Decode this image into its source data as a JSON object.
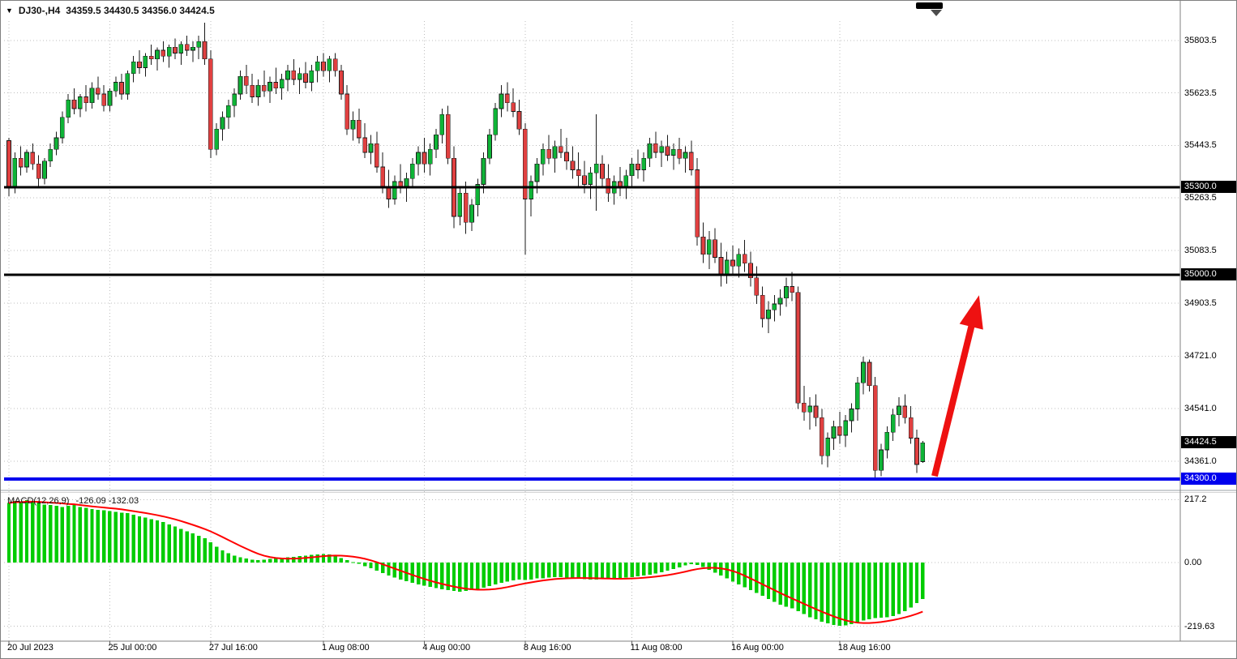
{
  "header": {
    "symbol_timeframe": "DJ30-,H4",
    "ohlc_text": "34359.5 34430.5 34356.0 34424.5"
  },
  "macd_panel": {
    "label": "MACD(12,26,9)",
    "values_text": "-126.09 -132.03"
  },
  "colors": {
    "background": "#ffffff",
    "grid": "#bdbdbd",
    "bull": "#0fb437",
    "bear": "#e04040",
    "wick": "#1a1a1a",
    "price_box": "#000000",
    "level_blue": "#0000ee",
    "arrow": "#ee1111",
    "macd_bar": "#00cc00",
    "macd_signal": "#ff0000"
  },
  "chart_data": [
    {
      "type": "candlestick",
      "symbol": "DJ30-",
      "timeframe": "H4",
      "last_ohlc": {
        "open": 34359.5,
        "high": 34430.5,
        "low": 34356.0,
        "close": 34424.5
      },
      "y_axis": {
        "ticks": [
          "35803.5",
          "35623.5",
          "35443.5",
          "35263.5",
          "35083.5",
          "34903.5",
          "34721.0",
          "34541.0",
          "34361.0"
        ],
        "min": 34272,
        "max": 35870
      },
      "x_axis": {
        "labels": [
          "20 Jul 2023",
          "25 Jul 00:00",
          "27 Jul 16:00",
          "1 Aug 08:00",
          "4 Aug 00:00",
          "8 Aug 16:00",
          "11 Aug 08:00",
          "16 Aug 00:00",
          "18 Aug 16:00"
        ],
        "label_indices": [
          0,
          17,
          34,
          53,
          70,
          87,
          105,
          122,
          140
        ]
      },
      "hlines": [
        {
          "price": 35300.0,
          "label": "35300.0",
          "color": "#000000",
          "thickness": 3
        },
        {
          "price": 35000.0,
          "label": "35000.0",
          "color": "#000000",
          "thickness": 3
        },
        {
          "price": 34300.0,
          "label": "34300.0",
          "color": "#0000ee",
          "thickness": 4
        }
      ],
      "current_price": 34424.5,
      "current_price_label": "34424.5",
      "annotation_arrow": {
        "from_index": 156,
        "from_price": 34310,
        "to_index": 163.5,
        "to_price": 34930,
        "color": "#ee1111"
      },
      "candles": [
        [
          35460,
          35470,
          35270,
          35300
        ],
        [
          35300,
          35420,
          35280,
          35400
        ],
        [
          35400,
          35440,
          35340,
          35370
        ],
        [
          35370,
          35430,
          35350,
          35420
        ],
        [
          35420,
          35450,
          35360,
          35380
        ],
        [
          35380,
          35410,
          35300,
          35330
        ],
        [
          35330,
          35400,
          35310,
          35390
        ],
        [
          35390,
          35450,
          35370,
          35430
        ],
        [
          35430,
          35490,
          35410,
          35470
        ],
        [
          35470,
          35560,
          35450,
          35540
        ],
        [
          35540,
          35620,
          35520,
          35600
        ],
        [
          35600,
          35640,
          35550,
          35570
        ],
        [
          35570,
          35620,
          35540,
          35610
        ],
        [
          35610,
          35650,
          35560,
          35590
        ],
        [
          35590,
          35660,
          35570,
          35640
        ],
        [
          35640,
          35680,
          35600,
          35620
        ],
        [
          35620,
          35650,
          35560,
          35580
        ],
        [
          35580,
          35640,
          35560,
          35630
        ],
        [
          35630,
          35680,
          35610,
          35660
        ],
        [
          35660,
          35690,
          35600,
          35620
        ],
        [
          35620,
          35700,
          35600,
          35690
        ],
        [
          35690,
          35750,
          35660,
          35730
        ],
        [
          35730,
          35770,
          35690,
          35710
        ],
        [
          35710,
          35760,
          35680,
          35750
        ],
        [
          35750,
          35790,
          35720,
          35740
        ],
        [
          35740,
          35780,
          35700,
          35770
        ],
        [
          35770,
          35800,
          35730,
          35750
        ],
        [
          35750,
          35790,
          35710,
          35780
        ],
        [
          35780,
          35810,
          35740,
          35760
        ],
        [
          35760,
          35800,
          35720,
          35790
        ],
        [
          35790,
          35820,
          35750,
          35770
        ],
        [
          35770,
          35800,
          35730,
          35780
        ],
        [
          35780,
          35820,
          35740,
          35800
        ],
        [
          35800,
          35865,
          35720,
          35740
        ],
        [
          35740,
          35770,
          35400,
          35430
        ],
        [
          35430,
          35520,
          35410,
          35500
        ],
        [
          35500,
          35560,
          35460,
          35540
        ],
        [
          35540,
          35600,
          35500,
          35580
        ],
        [
          35580,
          35640,
          35540,
          35620
        ],
        [
          35620,
          35700,
          35600,
          35680
        ],
        [
          35680,
          35720,
          35620,
          35650
        ],
        [
          35650,
          35690,
          35590,
          35610
        ],
        [
          35610,
          35670,
          35580,
          35650
        ],
        [
          35650,
          35700,
          35610,
          35630
        ],
        [
          35630,
          35680,
          35590,
          35660
        ],
        [
          35660,
          35710,
          35620,
          35640
        ],
        [
          35640,
          35690,
          35600,
          35670
        ],
        [
          35670,
          35720,
          35630,
          35700
        ],
        [
          35700,
          35740,
          35650,
          35670
        ],
        [
          35670,
          35710,
          35620,
          35690
        ],
        [
          35690,
          35730,
          35640,
          35660
        ],
        [
          35660,
          35720,
          35630,
          35700
        ],
        [
          35700,
          35750,
          35660,
          35730
        ],
        [
          35730,
          35760,
          35680,
          35700
        ],
        [
          35700,
          35750,
          35660,
          35740
        ],
        [
          35740,
          35760,
          35680,
          35700
        ],
        [
          35700,
          35720,
          35600,
          35620
        ],
        [
          35620,
          35650,
          35480,
          35500
        ],
        [
          35500,
          35560,
          35460,
          35530
        ],
        [
          35530,
          35570,
          35450,
          35470
        ],
        [
          35470,
          35520,
          35400,
          35420
        ],
        [
          35420,
          35480,
          35380,
          35450
        ],
        [
          35450,
          35490,
          35350,
          35370
        ],
        [
          35370,
          35420,
          35280,
          35300
        ],
        [
          35300,
          35360,
          35230,
          35260
        ],
        [
          35260,
          35340,
          35240,
          35320
        ],
        [
          35320,
          35380,
          35280,
          35300
        ],
        [
          35300,
          35350,
          35250,
          35330
        ],
        [
          35330,
          35400,
          35300,
          35380
        ],
        [
          35380,
          35440,
          35340,
          35420
        ],
        [
          35420,
          35470,
          35350,
          35380
        ],
        [
          35380,
          35450,
          35340,
          35430
        ],
        [
          35430,
          35500,
          35400,
          35480
        ],
        [
          35480,
          35570,
          35450,
          35550
        ],
        [
          35550,
          35580,
          35380,
          35400
        ],
        [
          35400,
          35440,
          35160,
          35200
        ],
        [
          35200,
          35300,
          35170,
          35280
        ],
        [
          35280,
          35320,
          35140,
          35180
        ],
        [
          35180,
          35260,
          35150,
          35240
        ],
        [
          35240,
          35330,
          35200,
          35310
        ],
        [
          35310,
          35420,
          35280,
          35400
        ],
        [
          35400,
          35500,
          35380,
          35480
        ],
        [
          35480,
          35590,
          35460,
          35570
        ],
        [
          35570,
          35650,
          35540,
          35620
        ],
        [
          35620,
          35660,
          35560,
          35590
        ],
        [
          35590,
          35640,
          35540,
          35560
        ],
        [
          35560,
          35600,
          35480,
          35500
        ],
        [
          35500,
          35520,
          35070,
          35260
        ],
        [
          35260,
          35340,
          35200,
          35320
        ],
        [
          35320,
          35400,
          35280,
          35380
        ],
        [
          35380,
          35450,
          35340,
          35430
        ],
        [
          35430,
          35480,
          35380,
          35400
        ],
        [
          35400,
          35460,
          35350,
          35440
        ],
        [
          35440,
          35500,
          35400,
          35420
        ],
        [
          35420,
          35470,
          35360,
          35390
        ],
        [
          35390,
          35440,
          35330,
          35360
        ],
        [
          35360,
          35420,
          35300,
          35340
        ],
        [
          35340,
          35390,
          35280,
          35310
        ],
        [
          35310,
          35370,
          35260,
          35350
        ],
        [
          35350,
          35550,
          35220,
          35380
        ],
        [
          35380,
          35410,
          35300,
          35330
        ],
        [
          35330,
          35380,
          35250,
          35280
        ],
        [
          35280,
          35340,
          35240,
          35320
        ],
        [
          35320,
          35370,
          35270,
          35300
        ],
        [
          35300,
          35360,
          35260,
          35340
        ],
        [
          35340,
          35400,
          35300,
          35380
        ],
        [
          35380,
          35430,
          35330,
          35360
        ],
        [
          35360,
          35420,
          35320,
          35400
        ],
        [
          35400,
          35470,
          35370,
          35450
        ],
        [
          35450,
          35490,
          35400,
          35420
        ],
        [
          35420,
          35460,
          35370,
          35440
        ],
        [
          35440,
          35480,
          35390,
          35410
        ],
        [
          35410,
          35450,
          35360,
          35430
        ],
        [
          35430,
          35470,
          35380,
          35400
        ],
        [
          35400,
          35440,
          35350,
          35420
        ],
        [
          35420,
          35460,
          35340,
          35360
        ],
        [
          35360,
          35400,
          35100,
          35130
        ],
        [
          35130,
          35180,
          35040,
          35070
        ],
        [
          35070,
          35150,
          35020,
          35120
        ],
        [
          35120,
          35160,
          35040,
          35060
        ],
        [
          35060,
          35110,
          34960,
          35000
        ],
        [
          35000,
          35080,
          34970,
          35050
        ],
        [
          35050,
          35100,
          35000,
          35030
        ],
        [
          35030,
          35090,
          34990,
          35070
        ],
        [
          35070,
          35120,
          35010,
          35040
        ],
        [
          35040,
          35080,
          34960,
          34990
        ],
        [
          34990,
          35030,
          34900,
          34930
        ],
        [
          34930,
          34960,
          34820,
          34850
        ],
        [
          34850,
          34910,
          34800,
          34880
        ],
        [
          34880,
          34930,
          34840,
          34900
        ],
        [
          34900,
          34950,
          34860,
          34920
        ],
        [
          34920,
          34990,
          34890,
          34960
        ],
        [
          34960,
          35010,
          34910,
          34940
        ],
        [
          34940,
          34960,
          34540,
          34560
        ],
        [
          34560,
          34620,
          34500,
          34530
        ],
        [
          34530,
          34580,
          34470,
          34550
        ],
        [
          34550,
          34590,
          34480,
          34510
        ],
        [
          34510,
          34540,
          34350,
          34380
        ],
        [
          34380,
          34460,
          34340,
          34440
        ],
        [
          34440,
          34500,
          34400,
          34480
        ],
        [
          34480,
          34530,
          34420,
          34450
        ],
        [
          34450,
          34520,
          34410,
          34500
        ],
        [
          34500,
          34560,
          34460,
          34540
        ],
        [
          34540,
          34650,
          34500,
          34630
        ],
        [
          34630,
          34720,
          34590,
          34700
        ],
        [
          34700,
          34710,
          34600,
          34620
        ],
        [
          34620,
          34650,
          34295,
          34330
        ],
        [
          34330,
          34420,
          34310,
          34400
        ],
        [
          34400,
          34480,
          34370,
          34460
        ],
        [
          34460,
          34540,
          34430,
          34520
        ],
        [
          34520,
          34580,
          34480,
          34550
        ],
        [
          34550,
          34590,
          34490,
          34510
        ],
        [
          34510,
          34550,
          34420,
          34440
        ],
        [
          34440,
          34470,
          34320,
          34350
        ],
        [
          34359.5,
          34430.5,
          34356.0,
          34424.5
        ]
      ]
    },
    {
      "type": "bar",
      "title": "MACD(12,26,9)",
      "macd_value": -126.09,
      "signal_value": -132.03,
      "y_ticks": [
        "217.2",
        "0.00",
        "-219.63"
      ],
      "ylim": [
        -257,
        232
      ],
      "signal_period": 9,
      "bar_color": "#00cc00",
      "signal_color": "#ff0000",
      "histogram": [
        205,
        212,
        208,
        215,
        210,
        205,
        200,
        198,
        195,
        192,
        195,
        198,
        192,
        188,
        185,
        182,
        180,
        178,
        175,
        172,
        170,
        165,
        160,
        155,
        150,
        145,
        140,
        132,
        124,
        116,
        108,
        100,
        92,
        84,
        70,
        55,
        42,
        32,
        24,
        18,
        14,
        10,
        8,
        10,
        12,
        14,
        16,
        18,
        20,
        22,
        24,
        26,
        28,
        30,
        28,
        22,
        15,
        8,
        2,
        -4,
        -12,
        -20,
        -28,
        -36,
        -44,
        -52,
        -58,
        -64,
        -70,
        -75,
        -80,
        -84,
        -88,
        -92,
        -95,
        -98,
        -100,
        -98,
        -95,
        -91,
        -86,
        -81,
        -76,
        -70,
        -65,
        -61,
        -58,
        -60,
        -58,
        -55,
        -54,
        -52,
        -50,
        -50,
        -52,
        -54,
        -56,
        -57,
        -58,
        -58,
        -57,
        -55,
        -54,
        -53,
        -52,
        -50,
        -48,
        -45,
        -42,
        -38,
        -33,
        -28,
        -22,
        -16,
        -10,
        -5,
        -8,
        -15,
        -25,
        -35,
        -45,
        -55,
        -65,
        -75,
        -85,
        -95,
        -105,
        -115,
        -125,
        -135,
        -145,
        -152,
        -158,
        -168,
        -178,
        -188,
        -196,
        -204,
        -210,
        -215,
        -218,
        -216,
        -212,
        -206,
        -200,
        -195,
        -192,
        -190,
        -188,
        -185,
        -178,
        -168,
        -155,
        -140,
        -126.09
      ]
    }
  ]
}
